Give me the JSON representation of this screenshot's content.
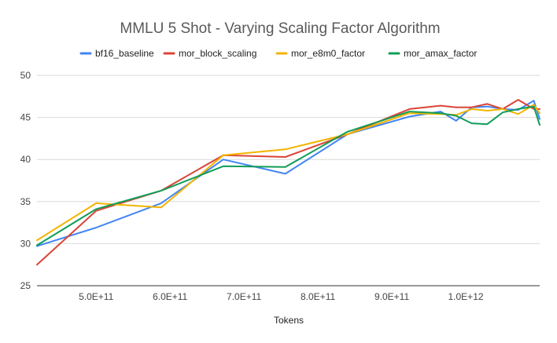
{
  "chart_data": {
    "type": "line",
    "title": "MMLU 5 Shot - Varying Scaling Factor Algorithm",
    "xlabel": "Tokens",
    "ylabel": "",
    "xlim": [
      420000000000.0,
      1100000000000.0
    ],
    "ylim": [
      25,
      50
    ],
    "yticks": [
      25,
      30,
      35,
      40,
      45,
      50
    ],
    "xticks": [
      500000000000.0,
      600000000000.0,
      700000000000.0,
      800000000000.0,
      900000000000.0,
      1000000000000.0
    ],
    "xtick_labels": [
      "5.0E+11",
      "6.0E+11",
      "7.0E+11",
      "8.0E+11",
      "9.0E+11",
      "1.0E+12"
    ],
    "grid": true,
    "legend_position": "top",
    "series": [
      {
        "name": "bf16_baseline",
        "color": "#4285f4",
        "x": [
          420000000000.0,
          500000000000.0,
          588000000000.0,
          672000000000.0,
          756000000000.0,
          840000000000.0,
          924000000000.0,
          966000000000.0,
          987000000000.0,
          1008000000000.0,
          1029000000000.0,
          1050000000000.0,
          1071000000000.0,
          1092000000000.0,
          1100000000000.0
        ],
        "y": [
          29.7,
          31.9,
          34.8,
          40.0,
          38.3,
          43.0,
          45.1,
          45.7,
          44.6,
          46.2,
          46.3,
          46.0,
          45.9,
          47.0,
          44.8
        ]
      },
      {
        "name": "mor_block_scaling",
        "color": "#db4437",
        "x": [
          420000000000.0,
          500000000000.0,
          588000000000.0,
          672000000000.0,
          756000000000.0,
          840000000000.0,
          924000000000.0,
          966000000000.0,
          987000000000.0,
          1008000000000.0,
          1029000000000.0,
          1050000000000.0,
          1071000000000.0,
          1092000000000.0,
          1100000000000.0
        ],
        "y": [
          27.5,
          33.9,
          36.3,
          40.5,
          40.3,
          43.0,
          46.0,
          46.4,
          46.2,
          46.2,
          46.6,
          46.0,
          47.1,
          46.0,
          46.0
        ]
      },
      {
        "name": "mor_e8m0_factor",
        "color": "#f4b400",
        "x": [
          420000000000.0,
          500000000000.0,
          588000000000.0,
          672000000000.0,
          756000000000.0,
          840000000000.0,
          924000000000.0,
          966000000000.0,
          987000000000.0,
          1008000000000.0,
          1029000000000.0,
          1050000000000.0,
          1071000000000.0,
          1092000000000.0,
          1100000000000.0
        ],
        "y": [
          30.4,
          34.8,
          34.3,
          40.5,
          41.2,
          43.0,
          45.5,
          45.4,
          45.3,
          46.0,
          45.8,
          46.0,
          45.4,
          46.5,
          45.5
        ]
      },
      {
        "name": "mor_amax_factor",
        "color": "#0f9d58",
        "x": [
          420000000000.0,
          500000000000.0,
          588000000000.0,
          672000000000.0,
          756000000000.0,
          840000000000.0,
          924000000000.0,
          966000000000.0,
          987000000000.0,
          1008000000000.0,
          1029000000000.0,
          1050000000000.0,
          1071000000000.0,
          1092000000000.0,
          1100000000000.0
        ],
        "y": [
          29.8,
          34.1,
          36.3,
          39.2,
          39.1,
          43.3,
          45.7,
          45.5,
          45.2,
          44.3,
          44.2,
          45.6,
          46.0,
          46.3,
          44.1
        ]
      }
    ]
  }
}
